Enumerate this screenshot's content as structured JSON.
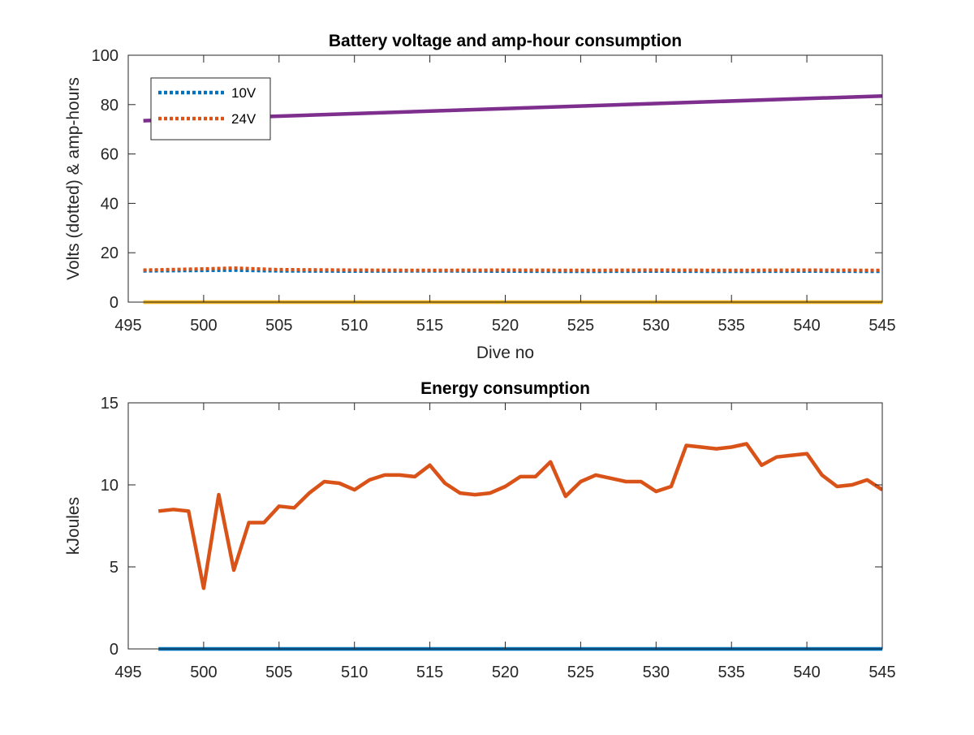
{
  "chart_data": [
    {
      "type": "line",
      "title": "Battery voltage and amp-hour consumption",
      "xlabel": "Dive no",
      "ylabel": "Volts (dotted) & amp-hours",
      "xlim": [
        495,
        545
      ],
      "ylim": [
        0,
        100
      ],
      "xticks": [
        495,
        500,
        505,
        510,
        515,
        520,
        525,
        530,
        535,
        540,
        545
      ],
      "yticks": [
        0,
        20,
        40,
        60,
        80,
        100
      ],
      "grid": false,
      "legend_position": "top-left",
      "series": [
        {
          "name": "10V",
          "style": "dotted",
          "color": "#0072BD",
          "x": [
            496,
            500,
            502,
            505,
            510,
            515,
            520,
            525,
            530,
            535,
            540,
            545
          ],
          "y": [
            12.6,
            12.8,
            12.9,
            12.6,
            12.5,
            12.6,
            12.5,
            12.4,
            12.5,
            12.4,
            12.5,
            12.4
          ]
        },
        {
          "name": "24V",
          "style": "dotted",
          "color": "#D95319",
          "x": [
            496,
            500,
            502,
            505,
            510,
            515,
            520,
            525,
            530,
            535,
            540,
            545
          ],
          "y": [
            13.0,
            13.5,
            13.8,
            13.2,
            13.0,
            12.9,
            13.0,
            12.9,
            13.0,
            12.9,
            13.0,
            12.9
          ]
        },
        {
          "style": "solid",
          "color": "#EDB120",
          "x": [
            496,
            545
          ],
          "y": [
            0,
            0
          ]
        },
        {
          "style": "solid",
          "color": "#7E2F8E",
          "x": [
            496,
            545
          ],
          "y": [
            73.5,
            83.5
          ]
        }
      ]
    },
    {
      "type": "line",
      "title": "Energy consumption",
      "xlabel": "",
      "ylabel": "kJoules",
      "xlim": [
        495,
        545
      ],
      "ylim": [
        0,
        15
      ],
      "xticks": [
        495,
        500,
        505,
        510,
        515,
        520,
        525,
        530,
        535,
        540,
        545
      ],
      "yticks": [
        0,
        5,
        10,
        15
      ],
      "grid": false,
      "series": [
        {
          "style": "solid",
          "color": "#0072BD",
          "x": [
            497,
            545
          ],
          "y": [
            0,
            0
          ]
        },
        {
          "style": "solid",
          "color": "#D95319",
          "x": [
            497,
            498,
            499,
            500,
            501,
            502,
            503,
            504,
            505,
            506,
            507,
            508,
            509,
            510,
            511,
            512,
            513,
            514,
            515,
            516,
            517,
            518,
            519,
            520,
            521,
            522,
            523,
            524,
            525,
            526,
            527,
            528,
            529,
            530,
            531,
            532,
            533,
            534,
            535,
            536,
            537,
            538,
            539,
            540,
            541,
            542,
            543,
            544,
            545
          ],
          "y": [
            8.4,
            8.5,
            8.4,
            3.7,
            9.4,
            4.8,
            7.7,
            7.7,
            8.7,
            8.6,
            9.5,
            10.2,
            10.1,
            9.7,
            10.3,
            10.6,
            10.6,
            10.5,
            11.2,
            10.1,
            9.5,
            9.4,
            9.5,
            9.9,
            10.5,
            10.5,
            11.4,
            9.3,
            10.2,
            10.6,
            10.4,
            10.2,
            10.2,
            9.6,
            9.9,
            12.4,
            12.3,
            12.2,
            12.3,
            12.5,
            11.2,
            11.7,
            11.8,
            11.9,
            10.6,
            9.9,
            10.0,
            10.3,
            9.7
          ]
        }
      ]
    }
  ]
}
